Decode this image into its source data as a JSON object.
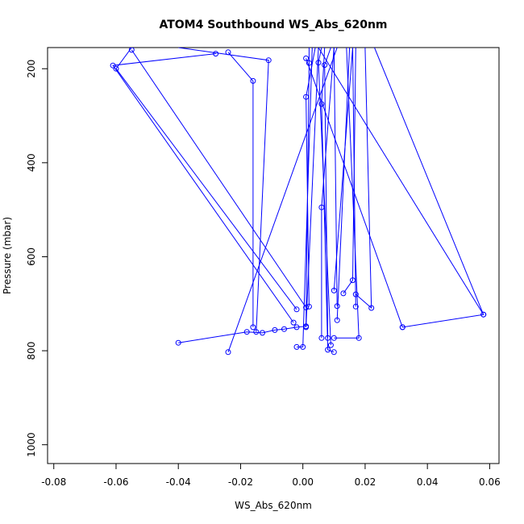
{
  "chart_data": {
    "type": "line",
    "title": "ATOM4 Southbound WS_Abs_620nm",
    "xlabel": "WS_Abs_620nm",
    "ylabel": "Pressure (mbar)",
    "xlim": [
      -0.082,
      0.063
    ],
    "ylim": [
      1040,
      155
    ],
    "y_reversed": true,
    "grid": false,
    "legend": "none",
    "color": "#0000ff",
    "marker": "open-circle",
    "x_ticks": [
      -0.08,
      -0.06,
      -0.04,
      -0.02,
      0.0,
      0.02,
      0.04,
      0.06
    ],
    "x_tick_labels": [
      "-0.08",
      "-0.06",
      "-0.04",
      "-0.02",
      "0.00",
      "0.02",
      "0.04",
      "0.06"
    ],
    "y_ticks": [
      200,
      400,
      600,
      800,
      1000
    ],
    "y_tick_labels": [
      "200",
      "400",
      "600",
      "800",
      "1000"
    ],
    "profiles": [
      {
        "points": [
          [
            -0.003,
            740
          ],
          [
            -0.061,
            193
          ],
          [
            -0.028,
            168
          ]
        ]
      },
      {
        "points": [
          [
            -0.002,
            712
          ],
          [
            -0.06,
            200
          ],
          [
            -0.055,
            155
          ]
        ]
      },
      {
        "points": [
          [
            0.001,
            708
          ],
          [
            -0.055,
            160
          ]
        ]
      },
      {
        "points": [
          [
            -0.016,
            750
          ],
          [
            -0.016,
            226
          ],
          [
            -0.024,
            165
          ]
        ]
      },
      {
        "points": [
          [
            -0.015,
            760
          ],
          [
            -0.011,
            182
          ],
          [
            -0.04,
            155
          ]
        ]
      },
      {
        "points": [
          [
            -0.04,
            783
          ],
          [
            -0.018,
            760
          ],
          [
            -0.013,
            762
          ],
          [
            -0.009,
            756
          ],
          [
            -0.006,
            754
          ],
          [
            -0.002,
            750
          ],
          [
            0.001,
            748
          ],
          [
            0.002,
            188
          ],
          [
            0.002,
            155
          ]
        ]
      },
      {
        "points": [
          [
            -0.024,
            803
          ],
          [
            0.011,
            155
          ]
        ]
      },
      {
        "points": [
          [
            -0.002,
            792
          ],
          [
            0.0,
            792
          ],
          [
            0.003,
            155
          ]
        ]
      },
      {
        "points": [
          [
            0.001,
            750
          ],
          [
            0.005,
            155
          ]
        ]
      },
      {
        "points": [
          [
            0.002,
            706
          ],
          [
            0.001,
            260
          ],
          [
            0.004,
            155
          ]
        ]
      },
      {
        "points": [
          [
            0.01,
            803
          ],
          [
            0.008,
            798
          ],
          [
            0.006,
            275
          ],
          [
            0.007,
            155
          ]
        ]
      },
      {
        "points": [
          [
            0.009,
            788
          ],
          [
            0.005,
            187
          ],
          [
            0.006,
            155
          ]
        ]
      },
      {
        "points": [
          [
            0.006,
            773
          ],
          [
            0.006,
            495
          ],
          [
            0.01,
            155
          ]
        ]
      },
      {
        "points": [
          [
            0.008,
            773
          ],
          [
            0.007,
            192
          ],
          [
            0.009,
            155
          ]
        ]
      },
      {
        "points": [
          [
            0.01,
            773
          ],
          [
            0.018,
            773
          ],
          [
            0.014,
            155
          ]
        ]
      },
      {
        "points": [
          [
            0.011,
            705
          ],
          [
            0.01,
            155
          ]
        ]
      },
      {
        "points": [
          [
            0.011,
            735
          ],
          [
            0.015,
            155
          ]
        ]
      },
      {
        "points": [
          [
            0.01,
            672
          ],
          [
            0.016,
            155
          ]
        ]
      },
      {
        "points": [
          [
            0.013,
            678
          ],
          [
            0.016,
            650
          ],
          [
            0.017,
            155
          ]
        ]
      },
      {
        "points": [
          [
            0.017,
            706
          ],
          [
            0.016,
            155
          ]
        ]
      },
      {
        "points": [
          [
            0.017,
            680
          ],
          [
            0.022,
            709
          ],
          [
            0.02,
            155
          ]
        ]
      },
      {
        "points": [
          [
            0.032,
            750
          ],
          [
            0.058,
            723
          ],
          [
            0.023,
            155
          ]
        ]
      },
      {
        "points": [
          [
            0.001,
            178
          ],
          [
            0.032,
            750
          ]
        ]
      },
      {
        "points": [
          [
            0.005,
            155
          ],
          [
            0.058,
            723
          ]
        ]
      }
    ]
  }
}
